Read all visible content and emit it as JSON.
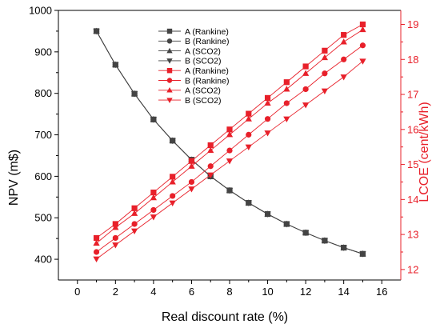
{
  "chart_data": {
    "type": "line",
    "x": [
      1,
      2,
      3,
      4,
      5,
      6,
      7,
      8,
      9,
      10,
      11,
      12,
      13,
      14,
      15
    ],
    "xlabel": "Real discount rate (%)",
    "ylabel_left": "NPV (m$)",
    "ylabel_right": "LCOE (cent/kWh)",
    "xlim": [
      -1,
      17
    ],
    "xticks": [
      0,
      2,
      4,
      6,
      8,
      10,
      12,
      14,
      16
    ],
    "ylim_left": [
      350,
      1000
    ],
    "yticks_left": [
      400,
      500,
      600,
      700,
      800,
      900,
      1000
    ],
    "ylim_right": [
      11.7,
      19.4
    ],
    "yticks_right": [
      12,
      13,
      14,
      15,
      16,
      17,
      18,
      19
    ],
    "grid": false,
    "legend_position": "top-center",
    "colors": {
      "npv": "#444444",
      "lcoe": "#e8202a",
      "axis": "#000000",
      "right_axis": "#e8202a"
    },
    "series": [
      {
        "name": "A (Rankine)",
        "axis": "left",
        "marker": "square",
        "color": "#444444",
        "values": [
          950,
          869,
          799,
          737,
          686,
          640,
          600,
          566,
          536,
          509,
          485,
          464,
          445,
          428,
          413
        ]
      },
      {
        "name": "B (Rankine)",
        "axis": "left",
        "marker": "circle",
        "color": "#444444",
        "values": [
          950,
          869,
          799,
          737,
          686,
          640,
          600,
          566,
          536,
          509,
          485,
          464,
          445,
          428,
          413
        ]
      },
      {
        "name": "A (SCO2)",
        "axis": "left",
        "marker": "triangle-up",
        "color": "#444444",
        "values": [
          950,
          869,
          799,
          737,
          686,
          640,
          600,
          566,
          536,
          509,
          485,
          464,
          445,
          428,
          413
        ]
      },
      {
        "name": "B (SCO2)",
        "axis": "left",
        "marker": "triangle-down",
        "color": "#444444",
        "values": [
          950,
          869,
          799,
          737,
          686,
          640,
          600,
          566,
          536,
          509,
          485,
          464,
          445,
          428,
          413
        ]
      },
      {
        "name": "A (Rankine)",
        "axis": "right",
        "marker": "square",
        "color": "#e8202a",
        "values": [
          12.9,
          13.3,
          13.75,
          14.2,
          14.65,
          15.1,
          15.55,
          16.0,
          16.45,
          16.9,
          17.35,
          17.8,
          18.25,
          18.7,
          19.0
        ]
      },
      {
        "name": "B (Rankine)",
        "axis": "right",
        "marker": "circle",
        "color": "#e8202a",
        "values": [
          12.5,
          12.9,
          13.3,
          13.7,
          14.1,
          14.5,
          14.95,
          15.4,
          15.85,
          16.3,
          16.75,
          17.15,
          17.6,
          18.0,
          18.4
        ]
      },
      {
        "name": "A (SCO2)",
        "axis": "right",
        "marker": "triangle-up",
        "color": "#e8202a",
        "values": [
          12.75,
          13.2,
          13.6,
          14.05,
          14.5,
          14.95,
          15.4,
          15.85,
          16.3,
          16.75,
          17.15,
          17.6,
          18.05,
          18.5,
          18.85
        ]
      },
      {
        "name": "B (SCO2)",
        "axis": "right",
        "marker": "triangle-down",
        "color": "#e8202a",
        "values": [
          12.3,
          12.7,
          13.1,
          13.5,
          13.9,
          14.3,
          14.7,
          15.1,
          15.5,
          15.9,
          16.3,
          16.7,
          17.1,
          17.5,
          17.95
        ]
      }
    ]
  }
}
